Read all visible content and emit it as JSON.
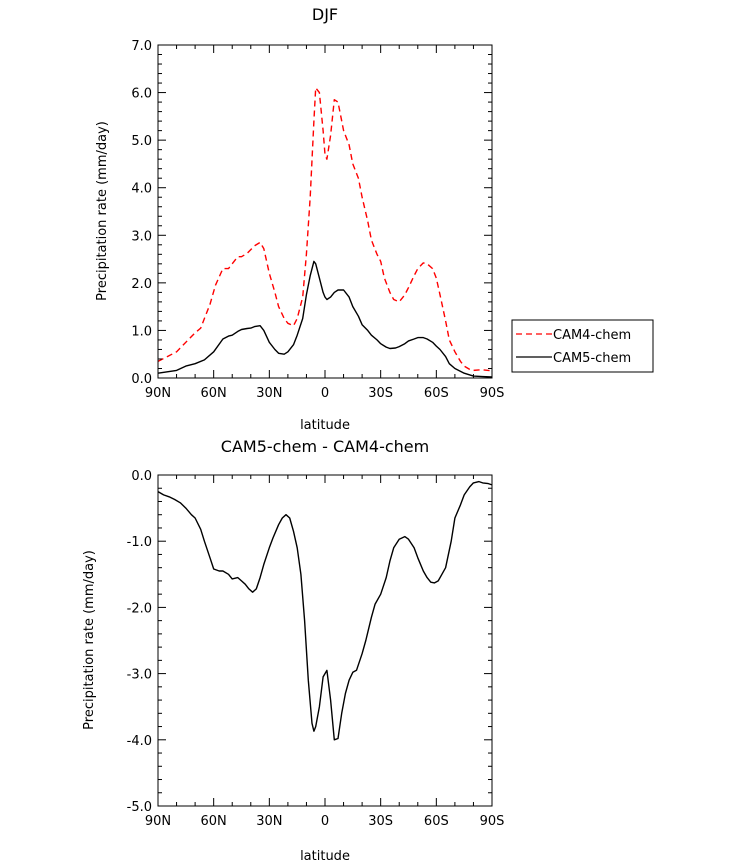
{
  "chart_data": [
    {
      "type": "line",
      "title": "DJF",
      "xlabel": "latitude",
      "ylabel": "Precipitation rate (mm/day)",
      "xlim": [
        -90,
        90
      ],
      "ylim": [
        0,
        7
      ],
      "xticks": [
        -90,
        -60,
        -30,
        0,
        30,
        60,
        90
      ],
      "xtick_labels": [
        "90N",
        "60N",
        "30N",
        "0",
        "30S",
        "60S",
        "90S"
      ],
      "yticks": [
        0,
        1,
        2,
        3,
        4,
        5,
        6,
        7
      ],
      "ytick_labels": [
        "0.0",
        "1.0",
        "2.0",
        "3.0",
        "4.0",
        "5.0",
        "6.0",
        "7.0"
      ],
      "legend": {
        "placement": "right-outside",
        "entries": [
          "CAM4-chem",
          "CAM5-chem"
        ]
      },
      "series": [
        {
          "name": "CAM4-chem",
          "color": "#ff0000",
          "dash": "dashed",
          "x": [
            -90,
            -85,
            -80,
            -75,
            -70,
            -67,
            -65,
            -62,
            -59,
            -55,
            -52,
            -50,
            -47,
            -45,
            -42,
            -40,
            -38,
            -35,
            -33,
            -30,
            -27,
            -25,
            -22,
            -20,
            -17,
            -15,
            -12,
            -10,
            -8,
            -6,
            -5,
            -3,
            -1,
            0,
            1,
            3,
            5,
            7,
            10,
            13,
            15,
            18,
            20,
            23,
            25,
            28,
            30,
            32,
            35,
            37,
            40,
            43,
            45,
            48,
            50,
            53,
            55,
            58,
            60,
            62,
            65,
            67,
            70,
            73,
            75,
            78,
            80,
            83,
            85,
            88,
            90
          ],
          "y": [
            0.35,
            0.45,
            0.55,
            0.75,
            0.95,
            1.05,
            1.25,
            1.55,
            1.95,
            2.3,
            2.3,
            2.4,
            2.55,
            2.55,
            2.62,
            2.7,
            2.78,
            2.85,
            2.72,
            2.2,
            1.8,
            1.5,
            1.25,
            1.15,
            1.1,
            1.25,
            1.7,
            2.6,
            3.8,
            5.4,
            6.1,
            6.0,
            5.2,
            4.7,
            4.6,
            5.1,
            5.85,
            5.8,
            5.2,
            4.9,
            4.5,
            4.2,
            3.8,
            3.3,
            2.9,
            2.6,
            2.45,
            2.1,
            1.8,
            1.65,
            1.6,
            1.75,
            1.9,
            2.15,
            2.3,
            2.42,
            2.4,
            2.3,
            2.1,
            1.75,
            1.2,
            0.8,
            0.55,
            0.35,
            0.25,
            0.18,
            0.16,
            0.17,
            0.17,
            0.16,
            0.15
          ]
        },
        {
          "name": "CAM5-chem",
          "color": "#000000",
          "dash": "solid",
          "x": [
            -90,
            -85,
            -80,
            -75,
            -70,
            -65,
            -60,
            -55,
            -52,
            -50,
            -47,
            -45,
            -42,
            -40,
            -38,
            -35,
            -33,
            -30,
            -27,
            -25,
            -22,
            -20,
            -17,
            -15,
            -12,
            -10,
            -8,
            -6,
            -5,
            -3,
            -1,
            0,
            1,
            3,
            5,
            7,
            10,
            13,
            15,
            18,
            20,
            23,
            25,
            28,
            30,
            33,
            35,
            38,
            40,
            43,
            45,
            48,
            50,
            53,
            55,
            58,
            60,
            62,
            65,
            67,
            70,
            75,
            80,
            85,
            90
          ],
          "y": [
            0.1,
            0.13,
            0.16,
            0.25,
            0.3,
            0.38,
            0.55,
            0.82,
            0.88,
            0.9,
            0.98,
            1.02,
            1.04,
            1.05,
            1.08,
            1.1,
            1.0,
            0.75,
            0.6,
            0.52,
            0.5,
            0.55,
            0.7,
            0.9,
            1.25,
            1.75,
            2.15,
            2.45,
            2.4,
            2.1,
            1.8,
            1.7,
            1.65,
            1.7,
            1.8,
            1.85,
            1.85,
            1.7,
            1.5,
            1.3,
            1.12,
            1.0,
            0.9,
            0.8,
            0.72,
            0.65,
            0.62,
            0.63,
            0.66,
            0.72,
            0.78,
            0.82,
            0.85,
            0.85,
            0.82,
            0.75,
            0.67,
            0.6,
            0.45,
            0.3,
            0.2,
            0.1,
            0.04,
            0.03,
            0.02
          ]
        }
      ]
    },
    {
      "type": "line",
      "title": "CAM5-chem - CAM4-chem",
      "xlabel": "latitude",
      "ylabel": "Precipitation rate (mm/day)",
      "xlim": [
        -90,
        90
      ],
      "ylim": [
        -5,
        0
      ],
      "xticks": [
        -90,
        -60,
        -30,
        0,
        30,
        60,
        90
      ],
      "xtick_labels": [
        "90N",
        "60N",
        "30N",
        "0",
        "30S",
        "60S",
        "90S"
      ],
      "yticks": [
        -5,
        -4,
        -3,
        -2,
        -1,
        0
      ],
      "ytick_labels": [
        "-5.0",
        "-4.0",
        "-3.0",
        "-2.0",
        "-1.0",
        "0.0"
      ],
      "series": [
        {
          "name": "CAM5-chem - CAM4-chem",
          "color": "#000000",
          "dash": "solid",
          "x": [
            -90,
            -87,
            -84,
            -81,
            -78,
            -75,
            -72,
            -70,
            -67,
            -65,
            -62,
            -60,
            -57,
            -55,
            -52,
            -50,
            -47,
            -45,
            -43,
            -41,
            -39,
            -37,
            -35,
            -33,
            -30,
            -28,
            -25,
            -23,
            -21,
            -19,
            -17,
            -15,
            -13,
            -11,
            -9,
            -7,
            -6,
            -5,
            -3,
            -1,
            0,
            1,
            3,
            5,
            7,
            9,
            11,
            13,
            15,
            17,
            20,
            22,
            25,
            27,
            30,
            33,
            35,
            37,
            40,
            43,
            45,
            48,
            50,
            53,
            55,
            57,
            59,
            61,
            63,
            65,
            68,
            70,
            73,
            75,
            78,
            80,
            83,
            85,
            88,
            90
          ],
          "y": [
            -0.25,
            -0.3,
            -0.33,
            -0.37,
            -0.42,
            -0.5,
            -0.6,
            -0.65,
            -0.82,
            -1.0,
            -1.25,
            -1.42,
            -1.45,
            -1.45,
            -1.5,
            -1.57,
            -1.55,
            -1.6,
            -1.65,
            -1.72,
            -1.77,
            -1.72,
            -1.55,
            -1.35,
            -1.1,
            -0.95,
            -0.75,
            -0.65,
            -0.6,
            -0.65,
            -0.85,
            -1.1,
            -1.5,
            -2.2,
            -3.1,
            -3.75,
            -3.87,
            -3.8,
            -3.5,
            -3.05,
            -3.0,
            -2.95,
            -3.4,
            -4.0,
            -3.98,
            -3.6,
            -3.3,
            -3.1,
            -2.98,
            -2.95,
            -2.7,
            -2.5,
            -2.15,
            -1.95,
            -1.8,
            -1.55,
            -1.3,
            -1.1,
            -0.97,
            -0.93,
            -0.97,
            -1.1,
            -1.25,
            -1.45,
            -1.55,
            -1.62,
            -1.63,
            -1.6,
            -1.5,
            -1.4,
            -1.0,
            -0.65,
            -0.45,
            -0.3,
            -0.18,
            -0.12,
            -0.1,
            -0.12,
            -0.13,
            -0.15
          ]
        }
      ]
    }
  ]
}
